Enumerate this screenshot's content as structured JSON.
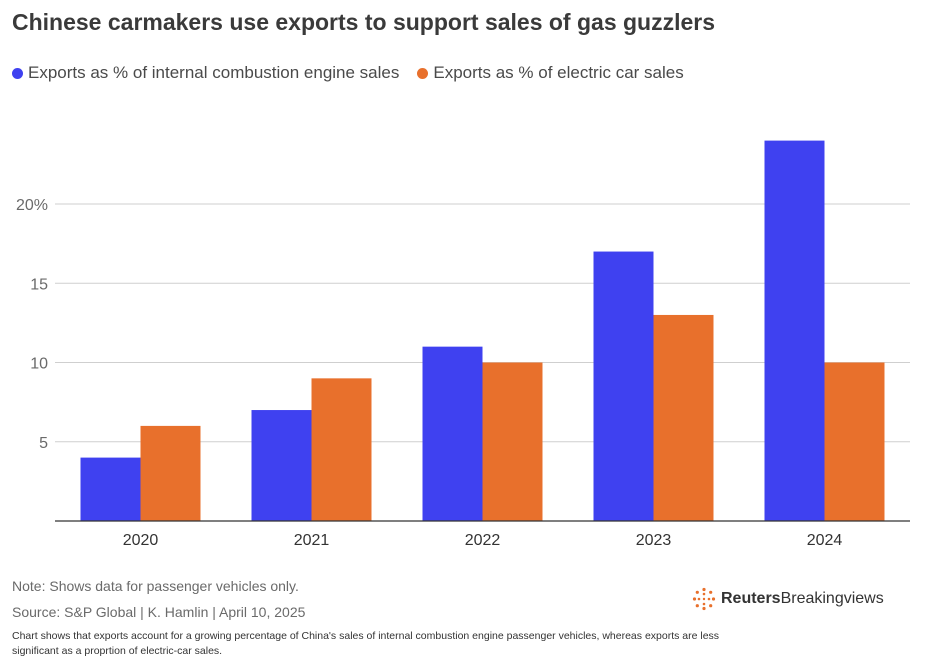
{
  "header": {
    "title": "Chinese carmakers use exports to support sales of gas guzzlers"
  },
  "colors": {
    "ice": "#3f41f0",
    "ev": "#e8702c",
    "grid": "#cfcfcf",
    "axis": "#333333",
    "logo": "#e8702c"
  },
  "chart_data": {
    "type": "bar",
    "categories": [
      "2020",
      "2021",
      "2022",
      "2023",
      "2024"
    ],
    "series": [
      {
        "name": "Exports as % of internal combustion engine sales",
        "values": [
          4,
          7,
          11,
          17,
          24
        ]
      },
      {
        "name": "Exports as % of electric car sales",
        "values": [
          6,
          9,
          10,
          13,
          10
        ]
      }
    ],
    "y_ticks": [
      {
        "value": 5,
        "label": "5"
      },
      {
        "value": 10,
        "label": "10"
      },
      {
        "value": 15,
        "label": "15"
      },
      {
        "value": 20,
        "label": "20%"
      }
    ],
    "ylim": [
      0,
      25
    ],
    "grid": true,
    "legend_position": "top-left"
  },
  "footer": {
    "note": "Note: Shows data for passenger vehicles only.",
    "source": "Source: S&P Global | K. Hamlin | April 10, 2025",
    "caption": "Chart shows that exports account for a growing percentage of China's sales of internal combustion engine passenger vehicles, whereas exports are less significant as a proprtion of electric-car sales.",
    "brand_name": "Reuters",
    "brand_sub": "Breakingviews"
  }
}
